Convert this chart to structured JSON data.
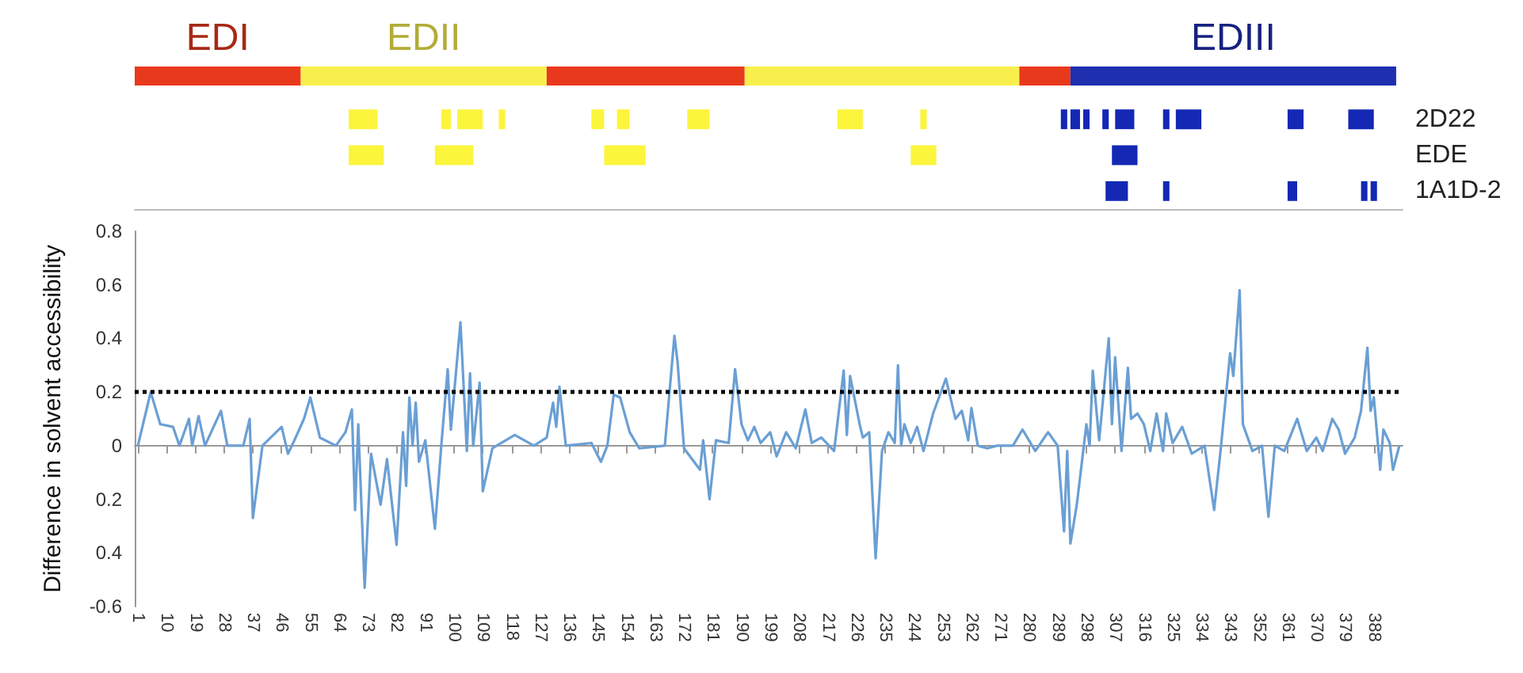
{
  "chart_data": [
    {
      "type": "bar",
      "orientation": "horizontal",
      "stacked": true,
      "categories": [
        null
      ],
      "xlim": [
        0,
        397
      ],
      "tick_labels": false,
      "series": [
        {
          "color": "#e8391d",
          "values": [
            52
          ]
        },
        {
          "color": "#f9ef4c",
          "values": [
            77
          ]
        },
        {
          "color": "#e8391d",
          "values": [
            62
          ]
        },
        {
          "color": "#f9ef4c",
          "values": [
            86
          ]
        },
        {
          "color": "#e8391d",
          "values": [
            16
          ]
        },
        {
          "color": "#1e2fb0",
          "values": [
            102
          ]
        }
      ],
      "annotations": [
        "EDI",
        "EDII",
        "EDIII"
      ]
    },
    {
      "type": "bar",
      "orientation": "horizontal",
      "categories": [
        "2D22",
        "EDE",
        "1A1D-2"
      ],
      "xlim": [
        0,
        397
      ],
      "tick_labels": "y",
      "series": [
        {
          "values": [
            9,
            11,
            7
          ],
          "base": [
            67,
            67,
            304
          ],
          "colors": [
            "#fbf53c",
            "#fbf53c",
            "#1428b4"
          ]
        },
        {
          "values": [
            3,
            12,
            2
          ],
          "base": [
            96,
            94,
            322
          ],
          "colors": [
            "#fbf53c",
            "#fbf53c",
            "#1428b4"
          ]
        },
        {
          "values": [
            8,
            13,
            3
          ],
          "base": [
            101,
            147,
            361
          ],
          "colors": [
            "#fbf53c",
            "#fbf53c",
            "#1428b4"
          ]
        },
        {
          "values": [
            2,
            8,
            2
          ],
          "base": [
            114,
            243,
            384
          ],
          "colors": [
            "#fbf53c",
            "#fbf53c",
            "#1428b4"
          ]
        },
        {
          "values": [
            4,
            8,
            2
          ],
          "base": [
            143,
            306,
            387
          ],
          "colors": [
            "#fbf53c",
            "#1428b4",
            "#1428b4"
          ]
        },
        {
          "values": [
            4,
            null,
            null
          ],
          "base": [
            151,
            null,
            null
          ],
          "colors": [
            "#fbf53c",
            null,
            null
          ]
        },
        {
          "values": [
            7,
            null,
            null
          ],
          "base": [
            173,
            null,
            null
          ],
          "colors": [
            "#fbf53c",
            null,
            null
          ]
        },
        {
          "values": [
            8,
            null,
            null
          ],
          "base": [
            220,
            null,
            null
          ],
          "colors": [
            "#fbf53c",
            null,
            null
          ]
        },
        {
          "values": [
            2,
            null,
            null
          ],
          "base": [
            246,
            null,
            null
          ],
          "colors": [
            "#fbf53c",
            null,
            null
          ]
        },
        {
          "values": [
            2,
            null,
            null
          ],
          "base": [
            290,
            null,
            null
          ],
          "colors": [
            "#1428b4",
            null,
            null
          ]
        },
        {
          "values": [
            3,
            null,
            null
          ],
          "base": [
            293,
            null,
            null
          ],
          "colors": [
            "#1428b4",
            null,
            null
          ]
        },
        {
          "values": [
            2,
            null,
            null
          ],
          "base": [
            297,
            null,
            null
          ],
          "colors": [
            "#1428b4",
            null,
            null
          ]
        },
        {
          "values": [
            2,
            null,
            null
          ],
          "base": [
            303,
            null,
            null
          ],
          "colors": [
            "#1428b4",
            null,
            null
          ]
        },
        {
          "values": [
            6,
            null,
            null
          ],
          "base": [
            307,
            null,
            null
          ],
          "colors": [
            "#1428b4",
            null,
            null
          ]
        },
        {
          "values": [
            2,
            null,
            null
          ],
          "base": [
            322,
            null,
            null
          ],
          "colors": [
            "#1428b4",
            null,
            null
          ]
        },
        {
          "values": [
            8,
            null,
            null
          ],
          "base": [
            326,
            null,
            null
          ],
          "colors": [
            "#1428b4",
            null,
            null
          ]
        },
        {
          "values": [
            5,
            null,
            null
          ],
          "base": [
            361,
            null,
            null
          ],
          "colors": [
            "#1428b4",
            null,
            null
          ]
        },
        {
          "values": [
            8,
            null,
            null
          ],
          "base": [
            380,
            null,
            null
          ],
          "colors": [
            "#1428b4",
            null,
            null
          ]
        }
      ]
    },
    {
      "type": "line",
      "ylabel": "Difference in solvent accessibility",
      "color": "#6a9fd4",
      "marker": "none",
      "grid": false,
      "xlim": [
        0,
        397
      ],
      "ylim": [
        -0.6,
        0.8
      ],
      "xticks": [
        1,
        10,
        19,
        28,
        37,
        46,
        55,
        64,
        73,
        82,
        91,
        100,
        109,
        118,
        127,
        136,
        145,
        154,
        163,
        172,
        181,
        190,
        199,
        208,
        217,
        226,
        235,
        244,
        253,
        262,
        271,
        280,
        289,
        298,
        307,
        316,
        325,
        334,
        343,
        352,
        361,
        370,
        379,
        388
      ],
      "yticks": [
        -0.6,
        {
          "value": -0.4,
          "label": "0.4"
        },
        {
          "value": -0.2,
          "label": "0.2"
        },
        0,
        0.2,
        0.4,
        0.6,
        0.8
      ],
      "ref_lines": [
        {
          "axis": "y",
          "value": 0.2,
          "color": "#000000",
          "line_style": "dotted"
        }
      ],
      "x": [
        1,
        5,
        8,
        12,
        14,
        17,
        18,
        20,
        22,
        27,
        29,
        34,
        36,
        37,
        40,
        46,
        48,
        50,
        53,
        55,
        58,
        63,
        66,
        68,
        69,
        70,
        72,
        74,
        77,
        79,
        82,
        84,
        85,
        86,
        87,
        88,
        89,
        91,
        94,
        96,
        98,
        99,
        102,
        104,
        105,
        106,
        108,
        109,
        112,
        119,
        125,
        129,
        131,
        132,
        133,
        135,
        143,
        146,
        148,
        150,
        152,
        155,
        158,
        166,
        169,
        170,
        172,
        177,
        178,
        180,
        182,
        186,
        188,
        190,
        192,
        194,
        196,
        199,
        201,
        204,
        207,
        210,
        212,
        215,
        219,
        222,
        223,
        224,
        227,
        228,
        230,
        232,
        234,
        236,
        238,
        239,
        240,
        241,
        243,
        245,
        247,
        250,
        254,
        257,
        259,
        261,
        262,
        264,
        267,
        270,
        275,
        278,
        282,
        286,
        289,
        291,
        292,
        293,
        295,
        298,
        299,
        300,
        302,
        305,
        306,
        307,
        309,
        311,
        312,
        314,
        316,
        318,
        320,
        322,
        323,
        325,
        328,
        331,
        335,
        338,
        340,
        343,
        344,
        346,
        347,
        350,
        353,
        355,
        357,
        360,
        364,
        367,
        370,
        372,
        375,
        377,
        379,
        382,
        384,
        386,
        387,
        388,
        390,
        391,
        393,
        394,
        396
      ],
      "values": [
        0,
        0.2,
        0.08,
        0.07,
        0,
        0.1,
        0,
        0.11,
        0,
        0.13,
        0,
        0,
        0.1,
        -0.27,
        0,
        0.07,
        -0.03,
        0.02,
        0.1,
        0.18,
        0.03,
        0,
        0.05,
        0.135,
        -0.24,
        0.08,
        -0.53,
        -0.03,
        -0.22,
        -0.05,
        -0.37,
        0.05,
        -0.15,
        0.18,
        0,
        0.16,
        -0.06,
        0.02,
        -0.31,
        0,
        0.285,
        0.06,
        0.46,
        -0.02,
        0.27,
        0,
        0.235,
        -0.17,
        -0.01,
        0.04,
        0,
        0.03,
        0.16,
        0.07,
        0.22,
        0,
        0.01,
        -0.06,
        0,
        0.19,
        0.18,
        0.05,
        -0.01,
        0,
        0.41,
        0.31,
        -0.01,
        -0.09,
        0.02,
        -0.2,
        0.02,
        0.01,
        0.285,
        0.08,
        0.02,
        0.07,
        0.01,
        0.05,
        -0.04,
        0.05,
        -0.01,
        0.135,
        0.01,
        0.03,
        -0.02,
        0.28,
        0.04,
        0.26,
        0.08,
        0.03,
        0.05,
        -0.42,
        -0.02,
        0.05,
        0.01,
        0.3,
        0,
        0.08,
        0.01,
        0.07,
        -0.02,
        0.12,
        0.25,
        0.1,
        0.13,
        0.02,
        0.14,
        0,
        -0.01,
        0,
        0,
        0.06,
        -0.02,
        0.05,
        0,
        -0.32,
        -0.02,
        -0.365,
        -0.22,
        0.08,
        0,
        0.28,
        0.02,
        0.4,
        0.08,
        0.33,
        -0.02,
        0.29,
        0.1,
        0.12,
        0.08,
        -0.02,
        0.12,
        -0.02,
        0.12,
        0.01,
        0.07,
        -0.03,
        0,
        -0.24,
        -0.02,
        0.345,
        0.26,
        0.58,
        0.08,
        -0.02,
        0,
        -0.265,
        0,
        -0.02,
        0.1,
        -0.02,
        0.03,
        -0.02,
        0.1,
        0.06,
        -0.03,
        0.03,
        0.13,
        0.365,
        0.13,
        0.18,
        -0.09,
        0.06,
        0.01,
        -0.09,
        0
      ]
    }
  ]
}
